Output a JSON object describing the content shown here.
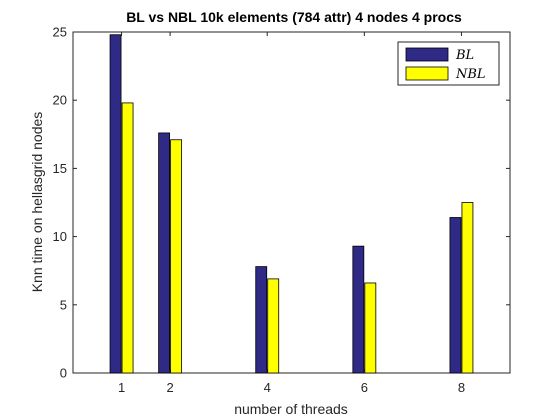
{
  "chart_data": {
    "type": "bar",
    "title": "BL vs NBL 10k elements (784 attr) 4 nodes 4 procs",
    "xlabel": "number of threads",
    "ylabel": "Knn time on hellasgrid nodes",
    "x": [
      1,
      2,
      4,
      6,
      8
    ],
    "x_ticks": [
      1,
      2,
      4,
      6,
      8
    ],
    "xlim": [
      0,
      9
    ],
    "ylim": [
      0,
      25
    ],
    "y_ticks": [
      0,
      5,
      10,
      15,
      20,
      25
    ],
    "grid": false,
    "legend_position": "top-right",
    "series": [
      {
        "name": "BL",
        "color": "#2e2a85",
        "values": [
          24.8,
          17.6,
          7.8,
          9.3,
          11.4
        ]
      },
      {
        "name": "NBL",
        "color": "#ffff00",
        "values": [
          19.8,
          17.1,
          6.9,
          6.6,
          12.5
        ]
      }
    ]
  }
}
